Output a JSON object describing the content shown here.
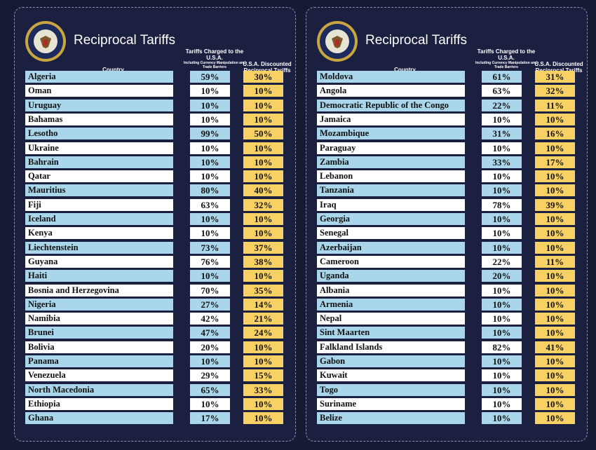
{
  "panels": [
    {
      "title": "Reciprocal Tariffs",
      "headers": {
        "country": "Country",
        "charged": "Tariffs Charged to the U.S.A.",
        "charged_note": "Including Currency Manipulation and Trade Barriers",
        "discounted": "U.S.A. Discounted Reciprocal Tariffs"
      },
      "rows": [
        [
          "Algeria",
          "59%",
          "30%"
        ],
        [
          "Oman",
          "10%",
          "10%"
        ],
        [
          "Uruguay",
          "10%",
          "10%"
        ],
        [
          "Bahamas",
          "10%",
          "10%"
        ],
        [
          "Lesotho",
          "99%",
          "50%"
        ],
        [
          "Ukraine",
          "10%",
          "10%"
        ],
        [
          "Bahrain",
          "10%",
          "10%"
        ],
        [
          "Qatar",
          "10%",
          "10%"
        ],
        [
          "Mauritius",
          "80%",
          "40%"
        ],
        [
          "Fiji",
          "63%",
          "32%"
        ],
        [
          "Iceland",
          "10%",
          "10%"
        ],
        [
          "Kenya",
          "10%",
          "10%"
        ],
        [
          "Liechtenstein",
          "73%",
          "37%"
        ],
        [
          "Guyana",
          "76%",
          "38%"
        ],
        [
          "Haiti",
          "10%",
          "10%"
        ],
        [
          "Bosnia and Herzegovina",
          "70%",
          "35%"
        ],
        [
          "Nigeria",
          "27%",
          "14%"
        ],
        [
          "Namibia",
          "42%",
          "21%"
        ],
        [
          "Brunei",
          "47%",
          "24%"
        ],
        [
          "Bolivia",
          "20%",
          "10%"
        ],
        [
          "Panama",
          "10%",
          "10%"
        ],
        [
          "Venezuela",
          "29%",
          "15%"
        ],
        [
          "North Macedonia",
          "65%",
          "33%"
        ],
        [
          "Ethiopia",
          "10%",
          "10%"
        ],
        [
          "Ghana",
          "17%",
          "10%"
        ]
      ]
    },
    {
      "title": "Reciprocal Tariffs",
      "headers": {
        "country": "Country",
        "charged": "Tariffs Charged to the U.S.A.",
        "charged_note": "Including Currency Manipulation and Trade Barriers",
        "discounted": "U.S.A. Discounted Reciprocal Tariffs"
      },
      "rows": [
        [
          "Moldova",
          "61%",
          "31%"
        ],
        [
          "Angola",
          "63%",
          "32%"
        ],
        [
          "Democratic Republic of the Congo",
          "22%",
          "11%"
        ],
        [
          "Jamaica",
          "10%",
          "10%"
        ],
        [
          "Mozambique",
          "31%",
          "16%"
        ],
        [
          "Paraguay",
          "10%",
          "10%"
        ],
        [
          "Zambia",
          "33%",
          "17%"
        ],
        [
          "Lebanon",
          "10%",
          "10%"
        ],
        [
          "Tanzania",
          "10%",
          "10%"
        ],
        [
          "Iraq",
          "78%",
          "39%"
        ],
        [
          "Georgia",
          "10%",
          "10%"
        ],
        [
          "Senegal",
          "10%",
          "10%"
        ],
        [
          "Azerbaijan",
          "10%",
          "10%"
        ],
        [
          "Cameroon",
          "22%",
          "11%"
        ],
        [
          "Uganda",
          "20%",
          "10%"
        ],
        [
          "Albania",
          "10%",
          "10%"
        ],
        [
          "Armenia",
          "10%",
          "10%"
        ],
        [
          "Nepal",
          "10%",
          "10%"
        ],
        [
          "Sint Maarten",
          "10%",
          "10%"
        ],
        [
          "Falkland Islands",
          "82%",
          "41%"
        ],
        [
          "Gabon",
          "10%",
          "10%"
        ],
        [
          "Kuwait",
          "10%",
          "10%"
        ],
        [
          "Togo",
          "10%",
          "10%"
        ],
        [
          "Suriname",
          "10%",
          "10%"
        ],
        [
          "Belize",
          "10%",
          "10%"
        ]
      ]
    }
  ]
}
